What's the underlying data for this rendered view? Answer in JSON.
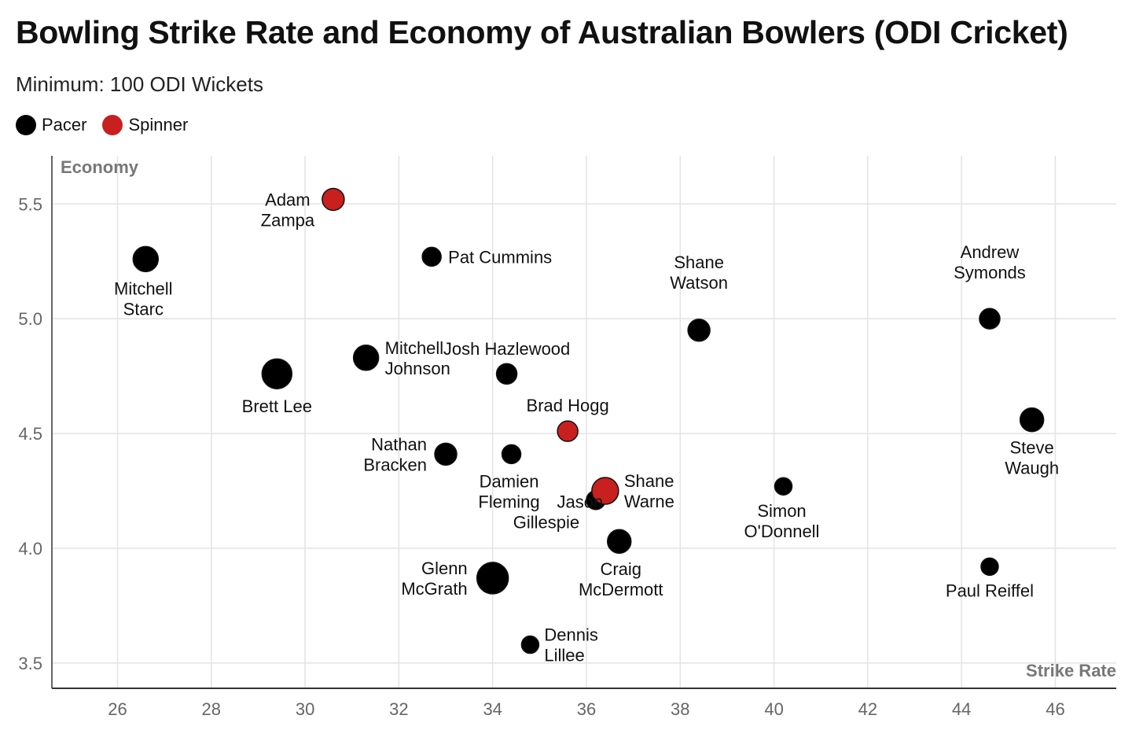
{
  "title": "Bowling Strike Rate and Economy of Australian Bowlers (ODI Cricket)",
  "subtitle": "Minimum: 100 ODI Wickets",
  "legend": [
    {
      "label": "Pacer",
      "color": "#000000"
    },
    {
      "label": "Spinner",
      "color": "#c8201e"
    }
  ],
  "chart_data": {
    "type": "scatter",
    "xlabel": "Strike Rate",
    "ylabel": "Economy",
    "xlim": [
      24.6,
      47.3
    ],
    "ylim": [
      3.39,
      5.71
    ],
    "x_ticks": [
      26,
      28,
      30,
      32,
      34,
      36,
      38,
      40,
      42,
      44,
      46
    ],
    "y_ticks": [
      3.5,
      4.0,
      4.5,
      5.0,
      5.5
    ],
    "grid": true,
    "legend_position": "top-left",
    "series": [
      {
        "name": "Pacer",
        "color": "#000000",
        "points": [
          {
            "label": "Mitchell Starc",
            "x": 26.6,
            "y": 5.26
          },
          {
            "label": "Brett Lee",
            "x": 29.4,
            "y": 4.76
          },
          {
            "label": "Mitchell Johnson",
            "x": 31.3,
            "y": 4.83
          },
          {
            "label": "Pat Cummins",
            "x": 32.7,
            "y": 5.27
          },
          {
            "label": "Josh Hazlewood",
            "x": 34.3,
            "y": 4.76
          },
          {
            "label": "Nathan Bracken",
            "x": 33.0,
            "y": 4.41
          },
          {
            "label": "Damien Fleming",
            "x": 34.4,
            "y": 4.41
          },
          {
            "label": "Jason Gillespie",
            "x": 36.2,
            "y": 4.21
          },
          {
            "label": "Glenn McGrath",
            "x": 34.0,
            "y": 3.87
          },
          {
            "label": "Dennis Lillee",
            "x": 34.8,
            "y": 3.58
          },
          {
            "label": "Craig McDermott",
            "x": 36.7,
            "y": 4.03
          },
          {
            "label": "Shane Watson",
            "x": 38.4,
            "y": 4.95
          },
          {
            "label": "Simon O'Donnell",
            "x": 40.2,
            "y": 4.27
          },
          {
            "label": "Andrew Symonds",
            "x": 44.6,
            "y": 5.0
          },
          {
            "label": "Steve Waugh",
            "x": 45.5,
            "y": 4.56
          },
          {
            "label": "Paul Reiffel",
            "x": 44.6,
            "y": 3.92
          }
        ]
      },
      {
        "name": "Spinner",
        "color": "#c8201e",
        "points": [
          {
            "label": "Adam Zampa",
            "x": 30.6,
            "y": 5.52
          },
          {
            "label": "Brad Hogg",
            "x": 35.6,
            "y": 4.51
          },
          {
            "label": "Shane Warne",
            "x": 36.4,
            "y": 4.25
          }
        ]
      }
    ]
  }
}
